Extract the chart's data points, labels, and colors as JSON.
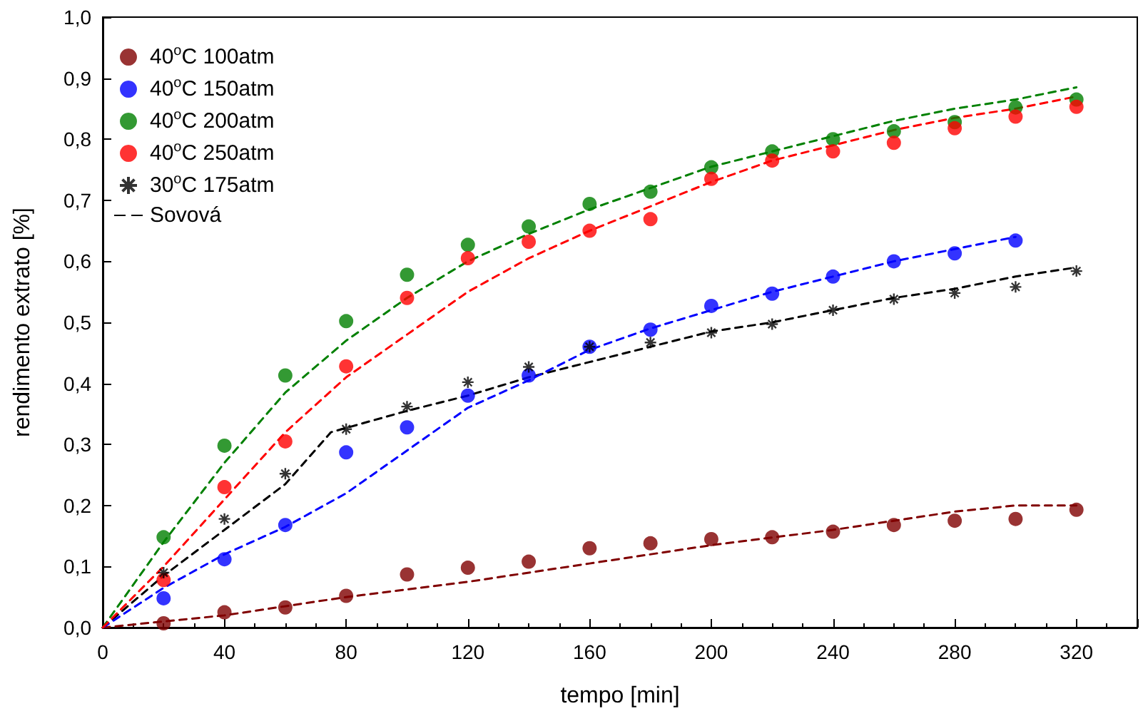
{
  "chart_data": {
    "type": "scatter",
    "xlabel": "tempo [min]",
    "ylabel": "rendimento extrato [%]",
    "xlim": [
      0,
      340
    ],
    "xticks": [
      0,
      40,
      80,
      120,
      160,
      200,
      240,
      280,
      320
    ],
    "ylim": [
      0,
      1
    ],
    "yticks": [
      {
        "value": 0,
        "label": "0,0"
      },
      {
        "value": 0.1,
        "label": "0,1"
      },
      {
        "value": 0.2,
        "label": "0,2"
      },
      {
        "value": 0.3,
        "label": "0,3"
      },
      {
        "value": 0.4,
        "label": "0,4"
      },
      {
        "value": 0.5,
        "label": "0,5"
      },
      {
        "value": 0.6,
        "label": "0,6"
      },
      {
        "value": 0.7,
        "label": "0,7"
      },
      {
        "value": 0.8,
        "label": "0,8"
      },
      {
        "value": 0.9,
        "label": "0,9"
      },
      {
        "value": 1,
        "label": "1,0"
      }
    ],
    "grid": false,
    "legend": "top left",
    "series": [
      {
        "name": "40$^{o}$C 100atm",
        "marker": "circle",
        "color": "#800000",
        "x": [
          20,
          40,
          60,
          80,
          100,
          120,
          140,
          160,
          180,
          200,
          220,
          240,
          260,
          280,
          300,
          320
        ],
        "values": [
          0.007,
          0.025,
          0.033,
          0.052,
          0.087,
          0.098,
          0.108,
          0.13,
          0.138,
          0.145,
          0.148,
          0.157,
          0.168,
          0.175,
          0.178,
          0.193
        ]
      },
      {
        "name": "40$^{o}$C 150atm",
        "marker": "circle",
        "color": "#0000ff",
        "x": [
          20,
          40,
          60,
          80,
          100,
          120,
          140,
          160,
          180,
          200,
          220,
          240,
          260,
          280,
          300
        ],
        "values": [
          0.048,
          0.112,
          0.168,
          0.287,
          0.328,
          0.38,
          0.413,
          0.46,
          0.488,
          0.527,
          0.547,
          0.575,
          0.6,
          0.613,
          0.634
        ]
      },
      {
        "name": "40$^{o}$C 200atm",
        "marker": "circle",
        "color": "#008000",
        "x": [
          20,
          40,
          60,
          80,
          100,
          120,
          140,
          160,
          180,
          200,
          220,
          240,
          260,
          280,
          300,
          320
        ],
        "values": [
          0.148,
          0.298,
          0.413,
          0.502,
          0.578,
          0.627,
          0.657,
          0.694,
          0.714,
          0.754,
          0.78,
          0.8,
          0.813,
          0.828,
          0.852,
          0.865
        ]
      },
      {
        "name": "40$^{o}$C 250atm",
        "marker": "circle",
        "color": "#ff0000",
        "x": [
          20,
          40,
          60,
          80,
          100,
          120,
          140,
          160,
          180,
          200,
          220,
          240,
          260,
          280,
          300,
          320
        ],
        "values": [
          0.078,
          0.23,
          0.305,
          0.428,
          0.54,
          0.605,
          0.632,
          0.65,
          0.669,
          0.735,
          0.765,
          0.78,
          0.794,
          0.818,
          0.837,
          0.853
        ]
      },
      {
        "name": "30$^{o}$C 175atm",
        "marker": "cross",
        "color": "#000000",
        "x": [
          20,
          40,
          60,
          80,
          100,
          120,
          140,
          160,
          180,
          200,
          220,
          240,
          260,
          280,
          300,
          320
        ],
        "values": [
          0.09,
          0.178,
          0.252,
          0.325,
          0.362,
          0.402,
          0.427,
          0.46,
          0.467,
          0.483,
          0.497,
          0.52,
          0.538,
          0.548,
          0.558,
          0.584
        ]
      },
      {
        "name": "Sovová",
        "type": "line",
        "marker": "none",
        "line_style": "dashed",
        "color": "#000000",
        "x": [
          0,
          20,
          40,
          60,
          75,
          100,
          120,
          140,
          160,
          180,
          200,
          220,
          240,
          260,
          280,
          300,
          320
        ],
        "values": [
          0,
          0.085,
          0.16,
          0.235,
          0.32,
          0.355,
          0.38,
          0.41,
          0.435,
          0.46,
          0.485,
          0.5,
          0.52,
          0.54,
          0.555,
          0.575,
          0.59
        ]
      },
      {
        "type": "line",
        "marker": "none",
        "line_style": "dashed",
        "color": "#800000",
        "x": [
          0,
          40,
          80,
          120,
          160,
          200,
          240,
          260,
          280,
          300,
          320
        ],
        "values": [
          0,
          0.02,
          0.05,
          0.075,
          0.105,
          0.135,
          0.16,
          0.175,
          0.19,
          0.2,
          0.2
        ]
      },
      {
        "type": "line",
        "marker": "none",
        "line_style": "dashed",
        "color": "#0000ff",
        "x": [
          0,
          20,
          40,
          60,
          80,
          100,
          120,
          140,
          160,
          180,
          200,
          220,
          240,
          260,
          280,
          300
        ],
        "values": [
          0,
          0.065,
          0.12,
          0.165,
          0.22,
          0.29,
          0.36,
          0.405,
          0.455,
          0.49,
          0.52,
          0.55,
          0.575,
          0.6,
          0.62,
          0.64
        ]
      },
      {
        "type": "line",
        "marker": "none",
        "line_style": "dashed",
        "color": "#008000",
        "x": [
          0,
          20,
          40,
          60,
          80,
          100,
          120,
          140,
          160,
          180,
          200,
          220,
          240,
          260,
          280,
          300,
          320
        ],
        "values": [
          0,
          0.14,
          0.27,
          0.385,
          0.47,
          0.54,
          0.6,
          0.645,
          0.685,
          0.72,
          0.755,
          0.78,
          0.805,
          0.83,
          0.85,
          0.865,
          0.885
        ]
      },
      {
        "type": "line",
        "marker": "none",
        "line_style": "dashed",
        "color": "#ff0000",
        "x": [
          0,
          20,
          40,
          60,
          80,
          100,
          120,
          140,
          160,
          180,
          200,
          220,
          240,
          260,
          280,
          300,
          320
        ],
        "values": [
          0,
          0.1,
          0.21,
          0.32,
          0.41,
          0.48,
          0.55,
          0.605,
          0.65,
          0.69,
          0.73,
          0.765,
          0.79,
          0.815,
          0.835,
          0.85,
          0.87
        ]
      }
    ]
  }
}
